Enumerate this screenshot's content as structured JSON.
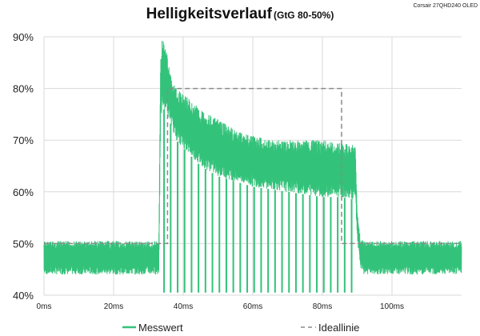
{
  "chart_data": {
    "type": "line",
    "title": "Helligkeitsverlauf",
    "subtitle": "(GtG 80-50%)",
    "corner_label": "Corsair 27QHD240  OLED",
    "ylim": [
      40,
      90
    ],
    "xlim": [
      0,
      120
    ],
    "y_ticks": [
      40,
      50,
      60,
      70,
      80,
      90
    ],
    "y_tick_labels": [
      "40%",
      "50%",
      "60%",
      "70%",
      "80%",
      "90%"
    ],
    "x_ticks": [
      0,
      20,
      40,
      60,
      80,
      100
    ],
    "x_tick_labels": [
      "0ms",
      "20ms",
      "40ms",
      "60ms",
      "80ms",
      "100ms"
    ],
    "grid": true,
    "legend_position": "bottom",
    "colors": {
      "measured": "#33c27a",
      "ideal": "#8a8a8a",
      "grid": "#d9d9d9"
    },
    "series": [
      {
        "name": "Messwert",
        "style": "solid",
        "envelope_x": [
          0,
          33,
          33.5,
          34,
          35,
          36,
          37,
          38,
          40,
          45,
          50,
          55,
          60,
          65,
          70,
          75,
          80,
          85,
          89.5,
          90,
          91,
          92,
          95,
          100,
          105,
          110,
          115,
          120
        ],
        "envelope_min": [
          44,
          44,
          73,
          76,
          76,
          74,
          72,
          70,
          68.5,
          65,
          63,
          62,
          61,
          60.5,
          60,
          59.5,
          59,
          59,
          58.5,
          51,
          45,
          44,
          44,
          44,
          44,
          44,
          44,
          44
        ],
        "envelope_max": [
          50.5,
          50.5,
          86,
          90,
          88,
          84,
          81,
          80,
          79,
          76,
          74,
          72,
          71,
          70,
          70,
          70,
          70,
          69.5,
          69,
          56,
          51,
          50.5,
          50.5,
          50.5,
          50.5,
          50.5,
          50.5,
          50.5
        ],
        "dip_times": [
          34.5,
          36.4,
          38.4,
          40.4,
          42.4,
          44.4,
          46.4,
          48.4,
          50.4,
          52.4,
          54.4,
          56.4,
          58.4,
          60.4,
          62.4,
          64.4,
          66.4,
          68.4,
          70.4,
          72.4,
          74.4,
          76.4,
          78.4,
          80.4,
          82.4,
          84.4,
          86.4,
          88.4
        ],
        "dip_value": 40.5
      },
      {
        "name": "Ideallinie",
        "style": "dashed",
        "x": [
          0,
          35.5,
          35.5,
          85.5,
          85.5,
          120
        ],
        "y": [
          50,
          50,
          80,
          80,
          50,
          50
        ]
      }
    ]
  }
}
